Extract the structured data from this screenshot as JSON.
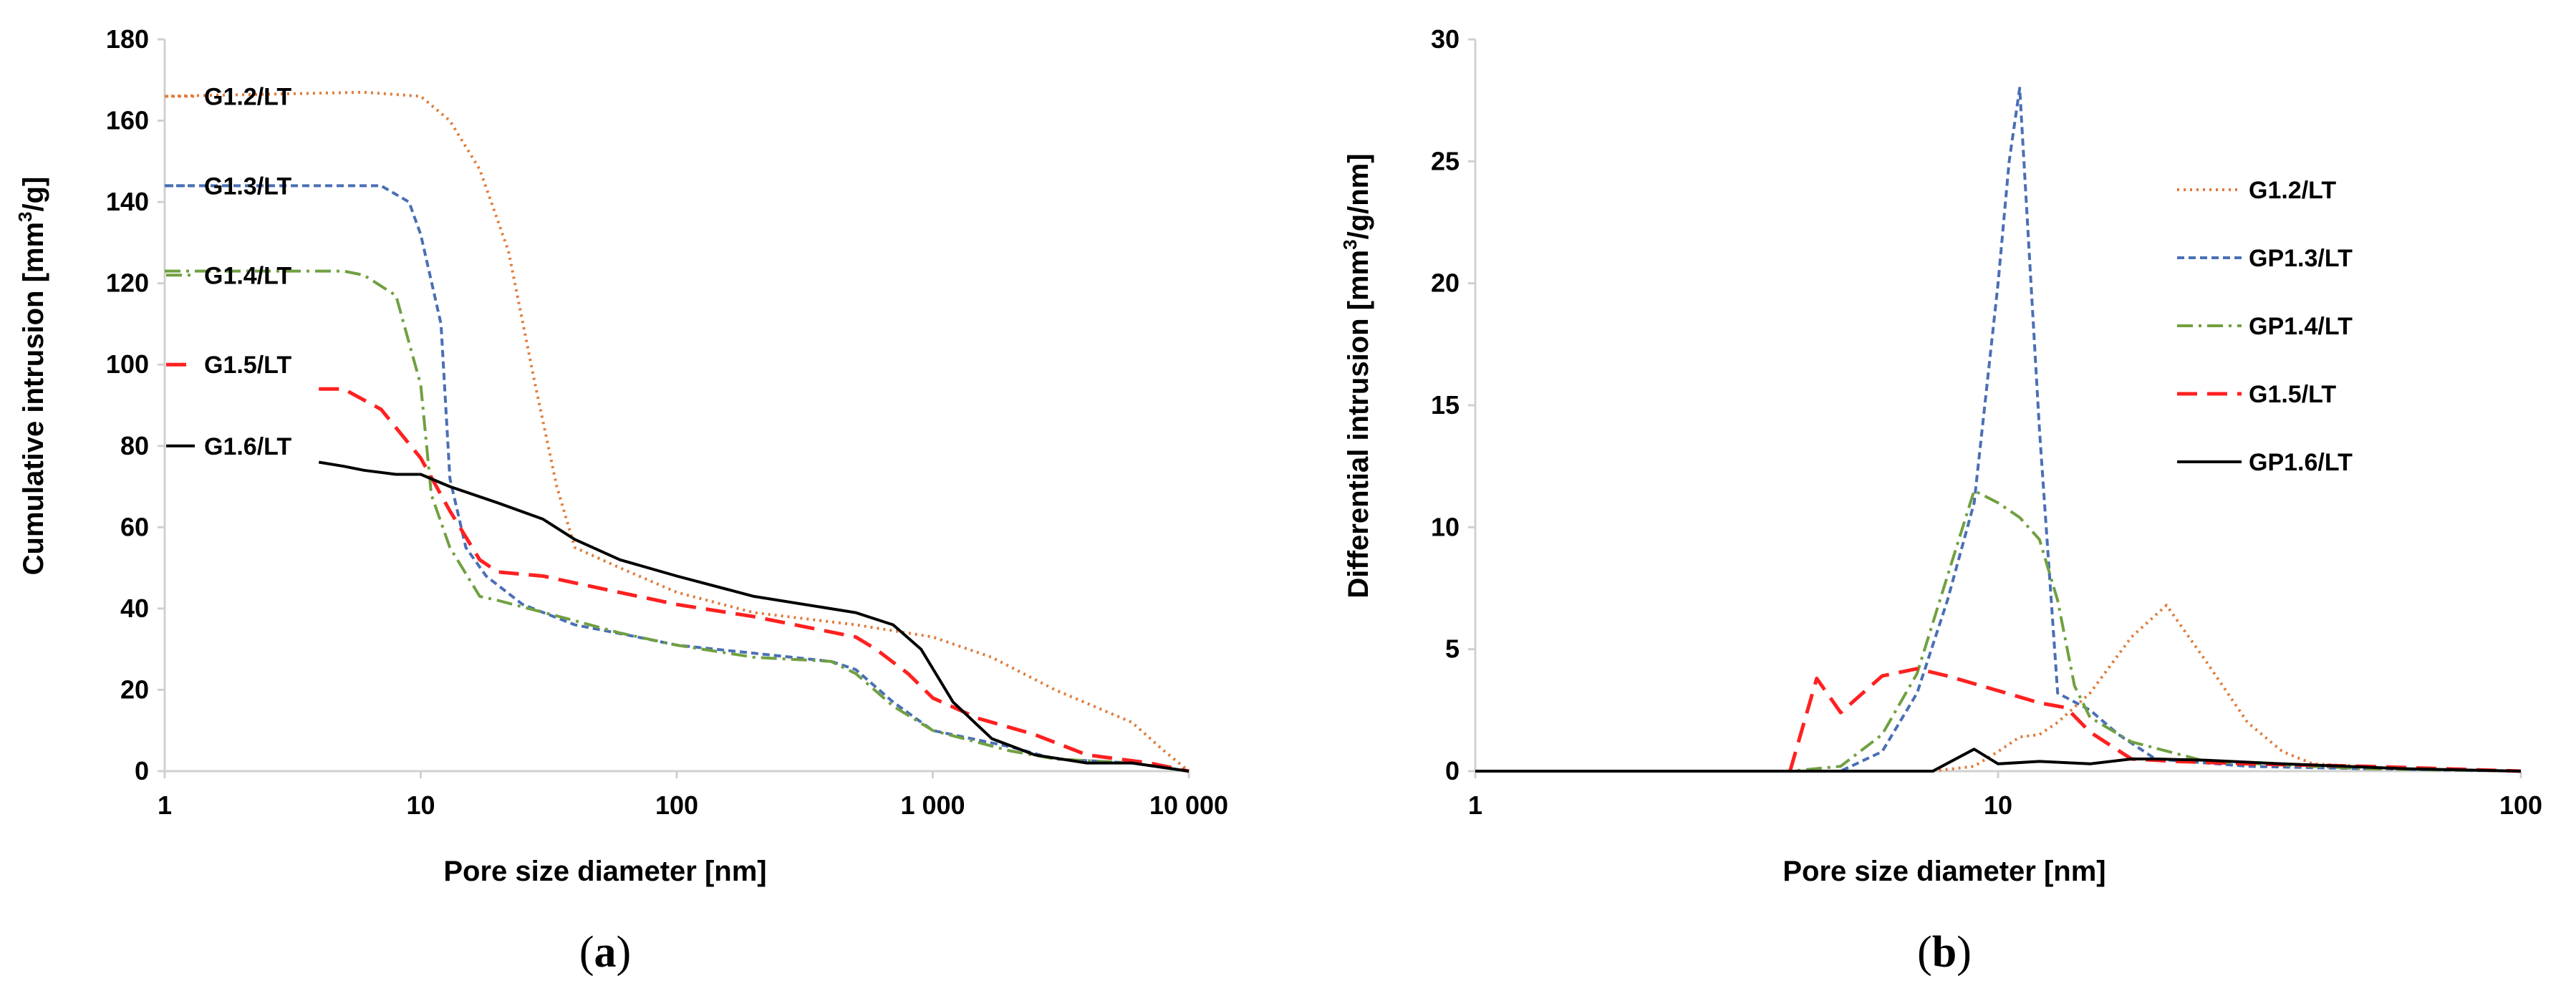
{
  "chart_data": [
    {
      "panel": "a",
      "type": "line",
      "xlabel": "Pore size diameter [nm]",
      "ylabel": "Cumulative intrusion [mm³/g]",
      "ylabel_parts": [
        "Cumulative intrusion [mm",
        "3",
        "/g]"
      ],
      "x_scale": "log",
      "xlim": [
        1,
        10000
      ],
      "ylim": [
        0,
        180
      ],
      "x_ticks": [
        1,
        10,
        100,
        1000,
        10000
      ],
      "x_tick_labels": [
        "1",
        "10",
        "100",
        "1 000",
        "10 000"
      ],
      "y_ticks": [
        0,
        20,
        40,
        60,
        80,
        100,
        120,
        140,
        160,
        180
      ],
      "y_tick_labels": [
        "0",
        "20",
        "40",
        "60",
        "80",
        "100",
        "120",
        "140",
        "160",
        "180"
      ],
      "legend_placement": "inline-left",
      "series": [
        {
          "name": "G1.2/LT",
          "color": "#e07b39",
          "style": "dotted",
          "x": [
            1,
            6,
            10,
            13,
            17,
            22,
            28,
            34,
            40,
            60,
            100,
            200,
            500,
            1000,
            1700,
            3000,
            6000,
            8000,
            10000
          ],
          "y": [
            166,
            167,
            166,
            160,
            148,
            128,
            95,
            70,
            55,
            50,
            44,
            39,
            36,
            33,
            28,
            20,
            12,
            5,
            0
          ]
        },
        {
          "name": "G1.3/LT",
          "color": "#4a6fb5",
          "style": "dashed",
          "x": [
            1,
            7,
            9,
            10,
            12,
            13,
            15,
            18,
            25,
            40,
            70,
            100,
            200,
            400,
            500,
            700,
            1000,
            2000,
            3000,
            6000,
            10000
          ],
          "y": [
            144,
            144,
            140,
            132,
            110,
            72,
            55,
            48,
            41,
            36,
            33,
            31,
            29,
            27,
            25,
            17,
            10,
            6,
            3,
            2,
            0
          ]
        },
        {
          "name": "G1.4/LT",
          "color": "#70a040",
          "style": "dashdot",
          "x": [
            1,
            5,
            6,
            8,
            10,
            11,
            13,
            17,
            20,
            40,
            60,
            100,
            200,
            400,
            500,
            700,
            1000,
            2000,
            3000,
            6000,
            10000
          ],
          "y": [
            123,
            123,
            122,
            117,
            95,
            68,
            55,
            43,
            42,
            37,
            34,
            31,
            28,
            27,
            24,
            16,
            10,
            5,
            3,
            2,
            0
          ]
        },
        {
          "name": "G1.5/LT",
          "color": "#ff2020",
          "style": "dashed-long",
          "x": [
            4,
            5,
            7,
            10,
            13,
            17,
            20,
            30,
            50,
            100,
            200,
            500,
            600,
            800,
            1000,
            1500,
            2500,
            4000,
            7000,
            10000
          ],
          "y": [
            94,
            94,
            89,
            77,
            64,
            52,
            49,
            48,
            45,
            41,
            38,
            33,
            30,
            24,
            18,
            13,
            9,
            4,
            2,
            0
          ]
        },
        {
          "name": "G1.6/LT",
          "color": "#000000",
          "style": "solid",
          "x": [
            4,
            5,
            6,
            8,
            10,
            13,
            20,
            30,
            40,
            60,
            100,
            200,
            500,
            700,
            900,
            1200,
            1700,
            2500,
            4000,
            6000,
            10000
          ],
          "y": [
            76,
            75,
            74,
            73,
            73,
            70,
            66,
            62,
            57,
            52,
            48,
            43,
            39,
            36,
            30,
            17,
            8,
            4,
            2,
            2,
            0
          ]
        }
      ]
    },
    {
      "panel": "b",
      "type": "line",
      "xlabel": "Pore size diameter [nm]",
      "ylabel": "Differential intrusion [mm³/g/nm]",
      "ylabel_parts": [
        "Differential intrusion [mm",
        "3",
        "/g/nm]"
      ],
      "x_scale": "log",
      "xlim": [
        1,
        100
      ],
      "ylim": [
        0,
        30
      ],
      "x_ticks": [
        1,
        10,
        100
      ],
      "x_tick_labels": [
        "1",
        "10",
        "100"
      ],
      "y_ticks": [
        0,
        5,
        10,
        15,
        20,
        25,
        30
      ],
      "y_tick_labels": [
        "0",
        "5",
        "10",
        "15",
        "20",
        "25",
        "30"
      ],
      "legend_placement": "right",
      "series": [
        {
          "name": "G1.2/LT",
          "color": "#e07b39",
          "style": "dotted",
          "x": [
            7.5,
            9,
            10,
            11,
            12,
            13,
            15,
            18,
            21,
            25,
            30,
            35,
            40,
            60,
            100
          ],
          "y": [
            0,
            0.2,
            0.8,
            1.4,
            1.5,
            2,
            3.2,
            5.5,
            6.8,
            4.5,
            2,
            0.8,
            0.3,
            0.1,
            0
          ]
        },
        {
          "name": "GP1.3/LT",
          "color": "#4a6fb5",
          "style": "dashed",
          "x": [
            1,
            5,
            6,
            7,
            8,
            9,
            10,
            10.5,
            11,
            12,
            13,
            15,
            17,
            20,
            30,
            50,
            100
          ],
          "y": [
            0,
            0,
            0.8,
            3.2,
            7,
            11,
            20,
            25,
            28,
            14,
            3.2,
            2.5,
            1.5,
            0.5,
            0.2,
            0.1,
            0
          ]
        },
        {
          "name": "GP1.4/LT",
          "color": "#70a040",
          "style": "dashdot",
          "x": [
            1,
            4,
            5,
            6,
            7,
            8,
            9,
            10,
            11,
            12,
            13,
            14,
            15,
            18,
            25,
            50,
            100
          ],
          "y": [
            0,
            0,
            0.2,
            1.5,
            4,
            8,
            11.5,
            11,
            10.4,
            9.5,
            7,
            3.5,
            2.2,
            1.2,
            0.4,
            0.1,
            0
          ]
        },
        {
          "name": "G1.5/LT",
          "color": "#ff2020",
          "style": "dashed-long",
          "x": [
            4,
            4.5,
            5,
            6,
            7,
            8,
            10,
            12,
            13.5,
            15,
            18,
            22,
            30,
            50,
            100
          ],
          "y": [
            0,
            3.8,
            2.4,
            3.9,
            4.2,
            3.9,
            3.3,
            2.8,
            2.6,
            1.6,
            0.5,
            0.4,
            0.3,
            0.2,
            0
          ]
        },
        {
          "name": "GP1.6/LT",
          "color": "#000000",
          "style": "solid",
          "x": [
            1,
            7.5,
            9,
            10,
            12,
            15,
            18,
            20,
            25,
            35,
            60,
            100
          ],
          "y": [
            0,
            0,
            0.9,
            0.3,
            0.4,
            0.3,
            0.5,
            0.5,
            0.45,
            0.3,
            0.1,
            0
          ]
        }
      ]
    }
  ],
  "labels": {
    "panel_a": {
      "open": "(",
      "letter": "a",
      "close": ")"
    },
    "panel_b": {
      "open": "(",
      "letter": "b",
      "close": ")"
    }
  },
  "styles": {
    "axis_color": "#d0d0d0",
    "tick_text_color": "#000000"
  }
}
